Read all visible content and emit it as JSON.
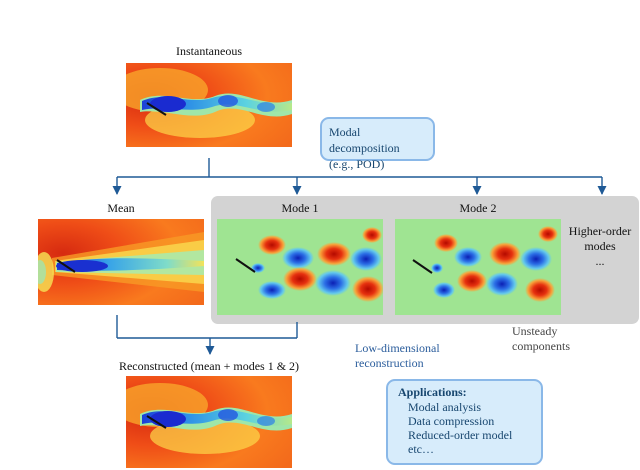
{
  "panels": {
    "instantaneous": "Instantaneous",
    "mean": "Mean",
    "mode1": "Mode 1",
    "mode2": "Mode 2",
    "higher_line1": "Higher-order",
    "higher_line2": "modes",
    "higher_ellipsis": "...",
    "reconstructed": "Reconstructed (mean + modes 1 & 2)"
  },
  "callouts": {
    "modal_line1": "Modal decomposition",
    "modal_line2": "(e.g., POD)",
    "applications_title": "Applications:",
    "applications": [
      "Modal analysis",
      "Data compression",
      "Reduced-order model",
      "etc…"
    ]
  },
  "notes": {
    "reconstruction_line1": "Low-dimensional",
    "reconstruction_line2": "reconstruction",
    "unsteady_line1": "Unsteady",
    "unsteady_line2": "components"
  },
  "colors": {
    "arrow": "#1f5a96",
    "panel_gray": "#d3d3d3",
    "callout_fill": "#d7ecfb",
    "callout_border": "#8ab8e8",
    "plate": "#111111"
  }
}
